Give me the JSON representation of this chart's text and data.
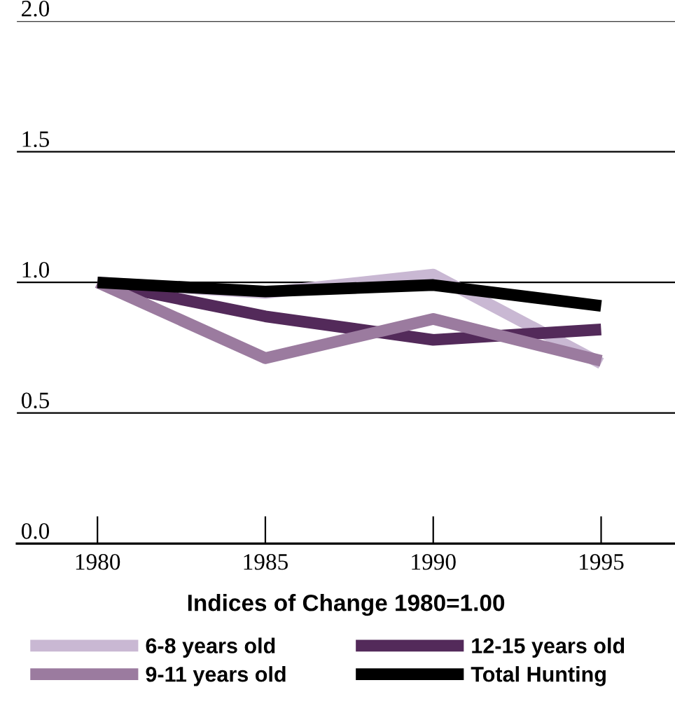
{
  "chart_data": {
    "type": "line",
    "xlabel": "Indices of Change 1980=1.00",
    "x": [
      1980,
      1985,
      1990,
      1995
    ],
    "xlim": [
      1977.6,
      1997.2
    ],
    "xticks": [
      1980,
      1985,
      1990,
      1995
    ],
    "ylim": [
      0,
      2.0
    ],
    "yticks": [
      {
        "value": 0,
        "label": "0.0"
      },
      {
        "value": 0.5,
        "label": "0.5"
      },
      {
        "value": 1.0,
        "label": "1.0"
      },
      {
        "value": 1.5,
        "label": "1.5"
      },
      {
        "value": 2.0,
        "label": "2.0"
      }
    ],
    "grid": "y",
    "legend": "bottom",
    "marker": "none",
    "line_style": "solid",
    "series": [
      {
        "name": "6-8 years old",
        "color": "#c9b8d3",
        "values": [
          1.0,
          0.96,
          1.03,
          0.69
        ]
      },
      {
        "name": "12-15 years old",
        "color": "#532a5a",
        "values": [
          1.0,
          0.87,
          0.78,
          0.82
        ]
      },
      {
        "name": "9-11 years old",
        "color": "#9b7b9f",
        "values": [
          1.0,
          0.71,
          0.86,
          0.7
        ]
      },
      {
        "name": "Total Hunting",
        "color": "#000000",
        "values": [
          1.0,
          0.965,
          0.99,
          0.91
        ]
      }
    ]
  }
}
